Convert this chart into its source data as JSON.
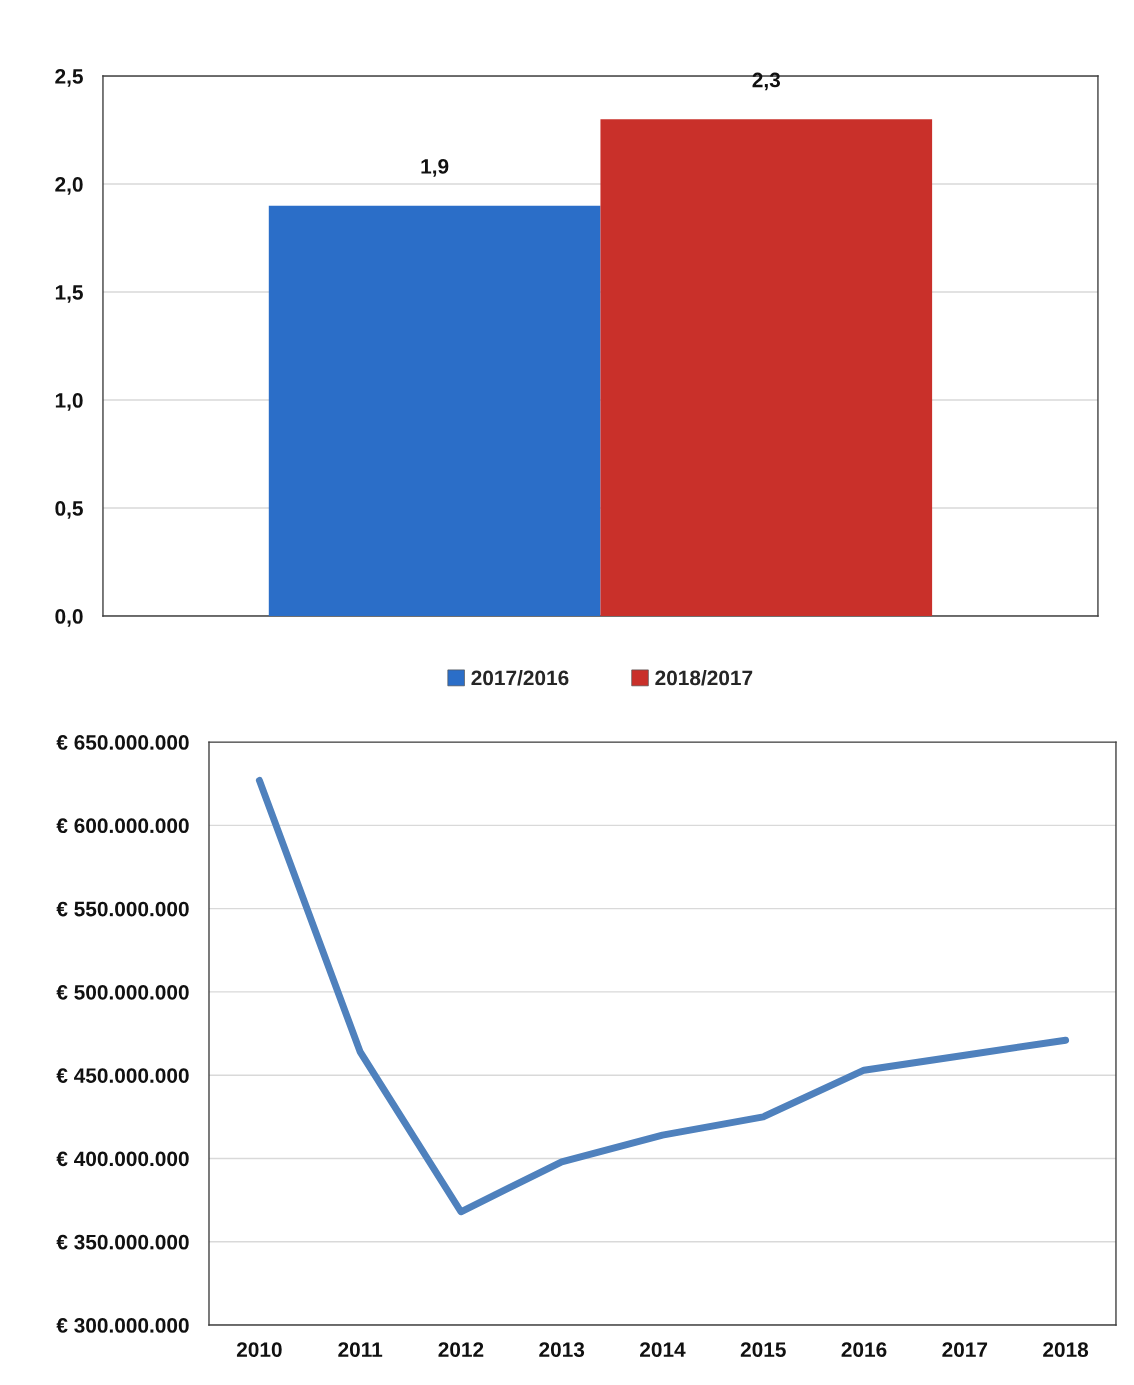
{
  "chart_data": [
    {
      "type": "bar",
      "categories": [
        null
      ],
      "series": [
        {
          "name": "2017/2016",
          "color": "#2b6ec8",
          "values": [
            1.9
          ],
          "value_labels": [
            "1,9"
          ]
        },
        {
          "name": "2018/2017",
          "color": "#c9302a",
          "values": [
            2.3
          ],
          "value_labels": [
            "2,3"
          ]
        }
      ],
      "ylim": [
        0,
        2.5
      ],
      "yticks": [
        {
          "value": 0,
          "label": "0,0"
        },
        {
          "value": 0.5,
          "label": "0,5"
        },
        {
          "value": 1,
          "label": "1,0"
        },
        {
          "value": 1.5,
          "label": "1,5"
        },
        {
          "value": 2,
          "label": "2,0"
        },
        {
          "value": 2.5,
          "label": "2,5"
        }
      ],
      "grid": "y",
      "legend": "bottom",
      "tick_labels": "y"
    },
    {
      "type": "line",
      "categories": [
        "2010",
        "2011",
        "2012",
        "2013",
        "2014",
        "2015",
        "2016",
        "2017",
        "2018"
      ],
      "series": [
        {
          "color": "#4f81bd",
          "values": [
            627000000,
            464000000,
            368000000,
            398000000,
            414000000,
            425000000,
            453000000,
            462000000,
            471000000
          ]
        }
      ],
      "ylim": [
        300000000,
        650000000
      ],
      "yticks": [
        {
          "value": 300000000,
          "label": "€ 300.000.000"
        },
        {
          "value": 350000000,
          "label": "€ 350.000.000"
        },
        {
          "value": 400000000,
          "label": "€ 400.000.000"
        },
        {
          "value": 450000000,
          "label": "€ 450.000.000"
        },
        {
          "value": 500000000,
          "label": "€ 500.000.000"
        },
        {
          "value": 550000000,
          "label": "€ 550.000.000"
        },
        {
          "value": 600000000,
          "label": "€ 600.000.000"
        },
        {
          "value": 650000000,
          "label": "€ 650.000.000"
        }
      ],
      "grid": "y"
    }
  ]
}
